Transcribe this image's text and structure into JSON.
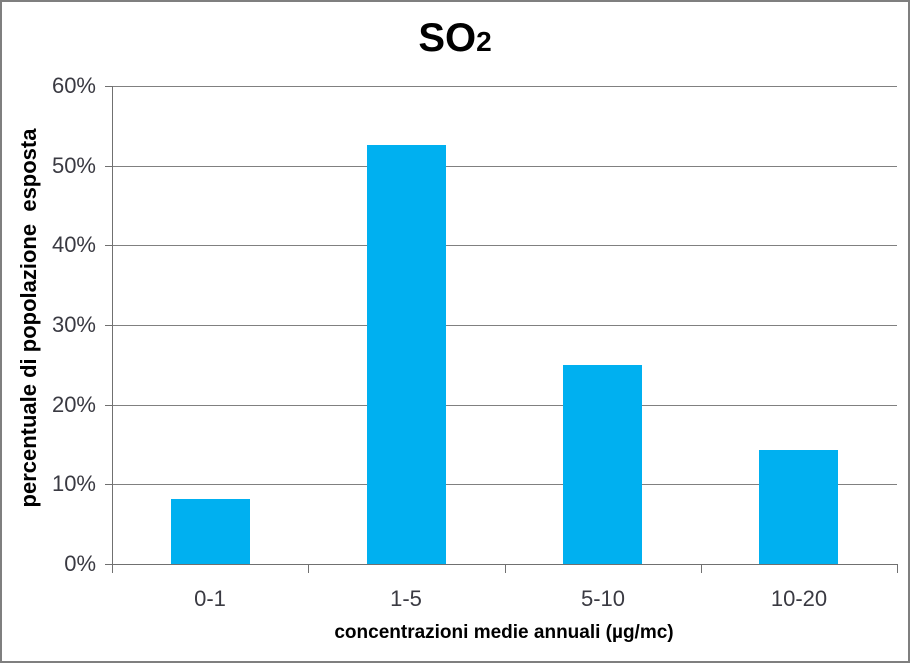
{
  "chart_data": {
    "type": "bar",
    "title": {
      "main": "SO",
      "sub": "2"
    },
    "categories": [
      "0-1",
      "1-5",
      "5-10",
      "10-20"
    ],
    "values": [
      8.2,
      52.6,
      25.0,
      14.3
    ],
    "unit": "%",
    "xlabel": "concentrazioni medie annuali (µg/mc)",
    "ylabel": "percentuale di popolazione  esposta",
    "ylim": [
      0,
      60
    ],
    "y_ticks": [
      0,
      10,
      20,
      30,
      40,
      50,
      60
    ],
    "y_tick_labels": [
      "0%",
      "10%",
      "20%",
      "30%",
      "40%",
      "50%",
      "60%"
    ],
    "grid": "horizontal-only",
    "legend": "none",
    "colors": {
      "bar": "#00B0F0",
      "gridline": "#808080",
      "axis": "#707070",
      "tick_label": "#3A3A42",
      "title_text": "#000000",
      "border": "#7F7F7F",
      "background": "#FFFFFF"
    }
  }
}
